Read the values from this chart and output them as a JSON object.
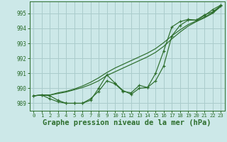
{
  "bg_color": "#cce8e8",
  "grid_color": "#aacccc",
  "line_color": "#2d6e2d",
  "xlabel": "Graphe pression niveau de la mer (hPa)",
  "xlabel_fontsize": 7.5,
  "ylim": [
    988.5,
    995.8
  ],
  "xlim": [
    -0.5,
    23.5
  ],
  "yticks": [
    989,
    990,
    991,
    992,
    993,
    994,
    995
  ],
  "xticks": [
    0,
    1,
    2,
    3,
    4,
    5,
    6,
    7,
    8,
    9,
    10,
    11,
    12,
    13,
    14,
    15,
    16,
    17,
    18,
    19,
    20,
    21,
    22,
    23
  ],
  "series_with_markers": [
    [
      989.5,
      989.55,
      989.5,
      989.2,
      989.0,
      989.0,
      989.0,
      989.3,
      989.8,
      990.5,
      990.3,
      989.8,
      989.7,
      990.2,
      990.05,
      990.5,
      991.5,
      993.5,
      994.2,
      994.55,
      994.55,
      994.85,
      995.25,
      995.55
    ],
    [
      989.5,
      989.55,
      989.3,
      989.1,
      989.0,
      989.0,
      989.0,
      989.2,
      990.0,
      990.9,
      990.35,
      989.85,
      989.6,
      990.0,
      990.05,
      991.0,
      992.5,
      994.1,
      994.45,
      994.6,
      994.55,
      994.9,
      995.1,
      995.5
    ]
  ],
  "series_smooth": [
    [
      989.5,
      989.55,
      989.55,
      989.7,
      989.8,
      989.95,
      990.15,
      990.4,
      990.7,
      991.05,
      991.35,
      991.6,
      991.85,
      992.1,
      992.35,
      992.65,
      993.05,
      993.5,
      993.9,
      994.25,
      994.5,
      994.75,
      995.05,
      995.5
    ],
    [
      989.5,
      989.55,
      989.55,
      989.65,
      989.75,
      989.9,
      990.05,
      990.25,
      990.5,
      990.85,
      991.1,
      991.35,
      991.6,
      991.85,
      992.1,
      992.4,
      992.8,
      993.3,
      993.75,
      994.15,
      994.45,
      994.7,
      995.0,
      995.45
    ]
  ]
}
